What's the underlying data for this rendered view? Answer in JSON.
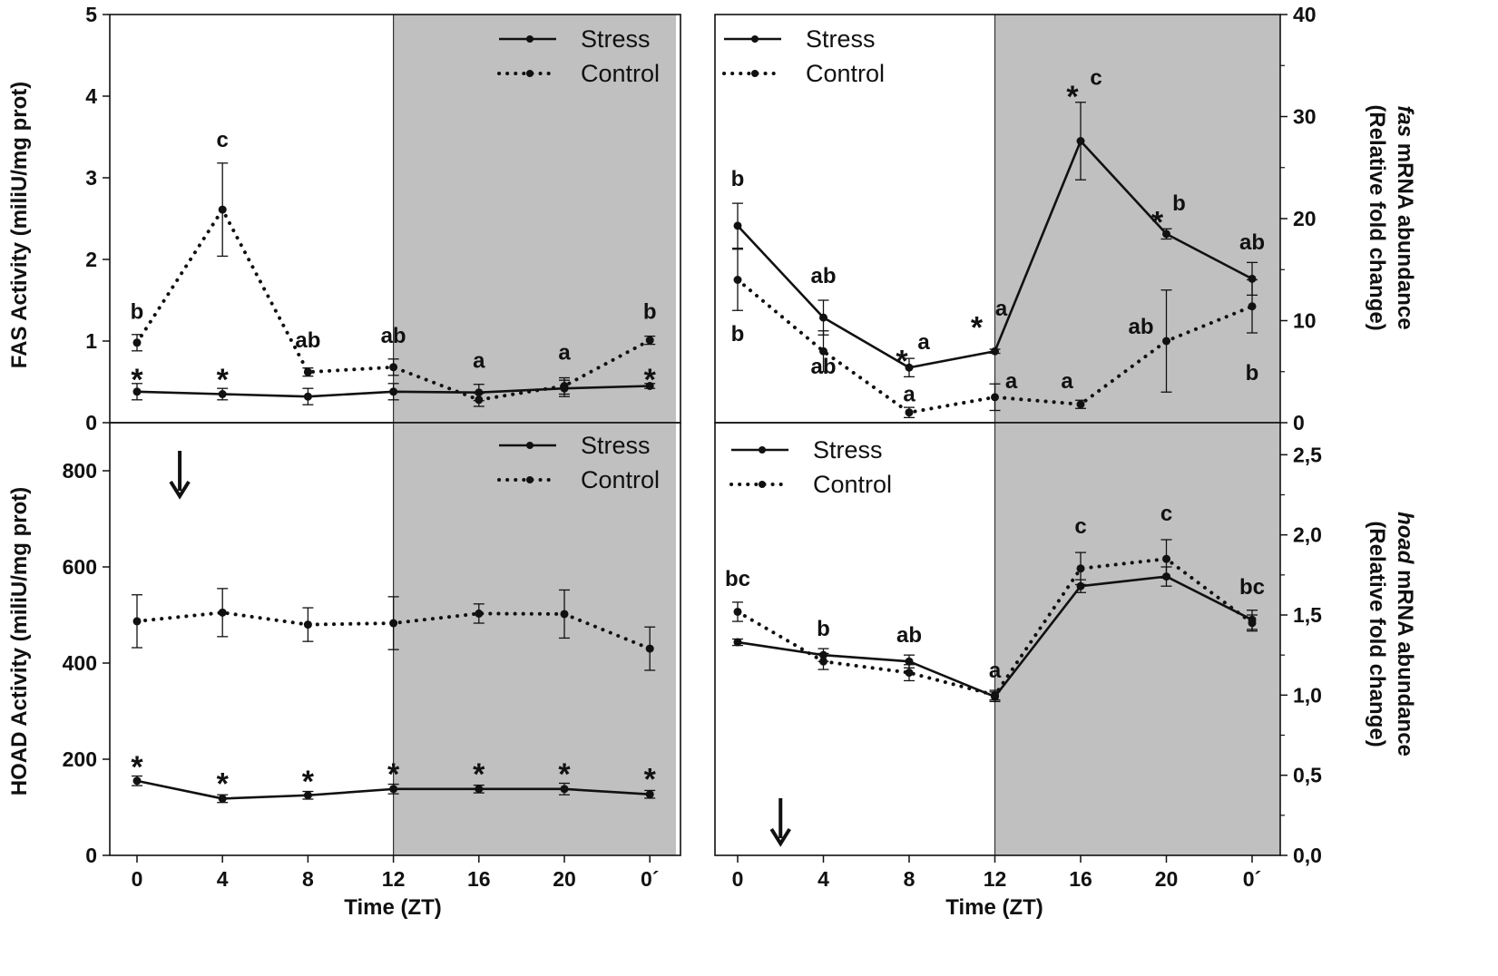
{
  "colors": {
    "dark_phase": "#c0c0c0",
    "line": "#111111",
    "background": "#ffffff"
  },
  "icons": {
    "arrow": "down-arrow-icon"
  },
  "chart_data": [
    {
      "id": "fas-activity",
      "type": "line",
      "ylabel": "FAS Activity (miliU/mg prot)",
      "xlabel": "",
      "categories": [
        "0",
        "4",
        "8",
        "12",
        "16",
        "20",
        "0´"
      ],
      "ylim": [
        0,
        5
      ],
      "yticks": [
        "0",
        "1",
        "2",
        "3",
        "4",
        "5"
      ],
      "yticks_values": [
        0,
        1,
        2,
        3,
        4,
        5
      ],
      "dark_phase": [
        "12",
        "0´"
      ],
      "legend": [
        "Stress",
        "Control"
      ],
      "series": [
        {
          "name": "Stress",
          "style": "solid",
          "values": [
            0.38,
            0.35,
            0.32,
            0.38,
            0.37,
            0.42,
            0.45
          ],
          "err": [
            0.1,
            0.07,
            0.1,
            0.1,
            0.1,
            0.1,
            0.03
          ]
        },
        {
          "name": "Control",
          "style": "dotted",
          "values": [
            0.98,
            2.61,
            0.62,
            0.68,
            0.28,
            0.45,
            1.01
          ],
          "err": [
            0.1,
            0.57,
            0.05,
            0.1,
            0.08,
            0.1,
            0.05
          ]
        }
      ],
      "annotations": [
        {
          "text": "*",
          "x": "0",
          "y": 0.62,
          "kind": "star"
        },
        {
          "text": "*",
          "x": "4",
          "y": 0.62,
          "kind": "star"
        },
        {
          "text": "*",
          "x": "0´",
          "y": 0.62,
          "kind": "star"
        },
        {
          "text": "b",
          "x": "0",
          "y": 1.27,
          "kind": "letter"
        },
        {
          "text": "c",
          "x": "4",
          "y": 3.38,
          "kind": "letter"
        },
        {
          "text": "ab",
          "x": "8",
          "y": 0.92,
          "kind": "letter"
        },
        {
          "text": "ab",
          "x": "12",
          "y": 0.98,
          "kind": "letter"
        },
        {
          "text": "a",
          "x": "16",
          "y": 0.67,
          "kind": "letter"
        },
        {
          "text": "a",
          "x": "20",
          "y": 0.77,
          "kind": "letter"
        },
        {
          "text": "b",
          "x": "0´",
          "y": 1.27,
          "kind": "letter"
        }
      ]
    },
    {
      "id": "fas-mrna",
      "type": "line",
      "ylabel_italic": "fas",
      "ylabel_rest": " mRNA abundance",
      "ylabel2": "(Relative fold change)",
      "xlabel": "",
      "categories": [
        "0",
        "4",
        "8",
        "12",
        "16",
        "20",
        "0´"
      ],
      "ylim": [
        0,
        40
      ],
      "yticks": [
        "0",
        "10",
        "20",
        "30",
        "40"
      ],
      "yticks_values": [
        0,
        10,
        20,
        30,
        40
      ],
      "dark_phase": [
        "12",
        "0´"
      ],
      "legend": [
        "Stress",
        "Control"
      ],
      "series": [
        {
          "name": "Stress",
          "style": "solid",
          "values": [
            19.3,
            10.3,
            5.4,
            7.0,
            27.6,
            18.5,
            14.1
          ],
          "err": [
            2.2,
            1.7,
            0.9,
            0.2,
            3.8,
            0.5,
            1.6
          ]
        },
        {
          "name": "Control",
          "style": "dotted",
          "values": [
            14.0,
            7.0,
            1.0,
            2.5,
            1.8,
            8.0,
            11.4
          ],
          "err": [
            3.0,
            2.0,
            0.5,
            1.3,
            0.4,
            5.0,
            2.6
          ]
        }
      ],
      "annotations": [
        {
          "text": "b",
          "x": "0",
          "y": 23.2,
          "kind": "letter"
        },
        {
          "text": "b",
          "x": "0",
          "y": 8.0,
          "kind": "letter"
        },
        {
          "text": "ab",
          "x": "4",
          "y": 13.7,
          "kind": "letter"
        },
        {
          "text": "ab",
          "x": "4",
          "y": 4.8,
          "kind": "letter"
        },
        {
          "text": "*",
          "x": "8",
          "y": 6.8,
          "kind": "star",
          "dx": -8
        },
        {
          "text": "a",
          "x": "8",
          "y": 7.2,
          "kind": "letter",
          "dx": 16
        },
        {
          "text": "a",
          "x": "8",
          "y": 2.1,
          "kind": "letter"
        },
        {
          "text": "*",
          "x": "12",
          "y": 10.1,
          "kind": "star",
          "dx": -20
        },
        {
          "text": "a",
          "x": "12",
          "y": 10.5,
          "kind": "letter",
          "dx": 7
        },
        {
          "text": "a",
          "x": "12",
          "y": 3.4,
          "kind": "letter",
          "dx": 18
        },
        {
          "text": "*",
          "x": "16",
          "y": 32.7,
          "kind": "star",
          "dx": -9
        },
        {
          "text": "c",
          "x": "16",
          "y": 33.1,
          "kind": "letter",
          "dx": 17
        },
        {
          "text": "a",
          "x": "16",
          "y": 3.4,
          "kind": "letter",
          "dx": -15
        },
        {
          "text": "*",
          "x": "20",
          "y": 20.4,
          "kind": "star",
          "dx": -10
        },
        {
          "text": "b",
          "x": "20",
          "y": 20.8,
          "kind": "letter",
          "dx": 14
        },
        {
          "text": "ab",
          "x": "20",
          "y": 8.7,
          "kind": "letter",
          "dx": -28
        },
        {
          "text": "ab",
          "x": "0´",
          "y": 17.0,
          "kind": "letter"
        },
        {
          "text": "b",
          "x": "0´",
          "y": 4.2,
          "kind": "letter"
        }
      ]
    },
    {
      "id": "hoad-activity",
      "type": "line",
      "ylabel": "HOAD Activity (miliU/mg prot)",
      "xlabel": "Time (ZT)",
      "categories": [
        "0",
        "4",
        "8",
        "12",
        "16",
        "20",
        "0´"
      ],
      "ylim": [
        0,
        900
      ],
      "yticks": [
        "0",
        "200",
        "400",
        "600",
        "800"
      ],
      "yticks_values": [
        0,
        200,
        400,
        600,
        800
      ],
      "dark_phase": [
        "12",
        "0´"
      ],
      "legend": [
        "Stress",
        "Control"
      ],
      "arrow_at": 2,
      "series": [
        {
          "name": "Stress",
          "style": "solid",
          "values": [
            155,
            118,
            125,
            138,
            138,
            138,
            127
          ],
          "err": [
            10,
            8,
            8,
            10,
            8,
            12,
            8
          ]
        },
        {
          "name": "Control",
          "style": "dotted",
          "values": [
            487,
            505,
            480,
            483,
            503,
            502,
            430
          ],
          "err": [
            55,
            50,
            35,
            55,
            20,
            50,
            45
          ]
        }
      ],
      "annotations": [
        {
          "text": "*",
          "x": "0",
          "y": 200,
          "kind": "star"
        },
        {
          "text": "*",
          "x": "4",
          "y": 165,
          "kind": "star"
        },
        {
          "text": "*",
          "x": "8",
          "y": 170,
          "kind": "star"
        },
        {
          "text": "*",
          "x": "12",
          "y": 185,
          "kind": "star"
        },
        {
          "text": "*",
          "x": "16",
          "y": 185,
          "kind": "star"
        },
        {
          "text": "*",
          "x": "20",
          "y": 185,
          "kind": "star"
        },
        {
          "text": "*",
          "x": "0´",
          "y": 175,
          "kind": "star"
        }
      ]
    },
    {
      "id": "hoad-mrna",
      "type": "line",
      "ylabel_italic": "hoad",
      "ylabel_rest": " mRNA abundance",
      "ylabel2": "(Relative fold change)",
      "xlabel": "Time (ZT)",
      "categories": [
        "0",
        "4",
        "8",
        "12",
        "16",
        "20",
        "0´"
      ],
      "ylim": [
        0,
        2.7
      ],
      "yticks": [
        "0,0",
        "0,5",
        "1,0",
        "1,5",
        "2,0",
        "2,5"
      ],
      "yticks_values": [
        0,
        0.5,
        1.0,
        1.5,
        2.0,
        2.5
      ],
      "dark_phase": [
        "12",
        "0´"
      ],
      "legend": [
        "Stress",
        "Control"
      ],
      "arrow_at": 2,
      "series": [
        {
          "name": "Stress",
          "style": "solid",
          "values": [
            1.33,
            1.25,
            1.21,
            0.99,
            1.68,
            1.74,
            1.47
          ],
          "err": [
            0.02,
            0.04,
            0.04,
            0.03,
            0.04,
            0.06,
            0.06
          ]
        },
        {
          "name": "Control",
          "style": "dotted",
          "values": [
            1.52,
            1.21,
            1.14,
            1.0,
            1.79,
            1.85,
            1.45
          ],
          "err": [
            0.06,
            0.05,
            0.05,
            0.03,
            0.1,
            0.12,
            0.05
          ]
        }
      ],
      "annotations": [
        {
          "text": "bc",
          "x": "0",
          "y": 1.68,
          "kind": "letter"
        },
        {
          "text": "b",
          "x": "4",
          "y": 1.37,
          "kind": "letter"
        },
        {
          "text": "ab",
          "x": "8",
          "y": 1.33,
          "kind": "letter"
        },
        {
          "text": "a",
          "x": "12",
          "y": 1.11,
          "kind": "letter"
        },
        {
          "text": "c",
          "x": "16",
          "y": 2.01,
          "kind": "letter"
        },
        {
          "text": "c",
          "x": "20",
          "y": 2.09,
          "kind": "letter"
        },
        {
          "text": "bc",
          "x": "0´",
          "y": 1.63,
          "kind": "letter"
        }
      ]
    }
  ]
}
